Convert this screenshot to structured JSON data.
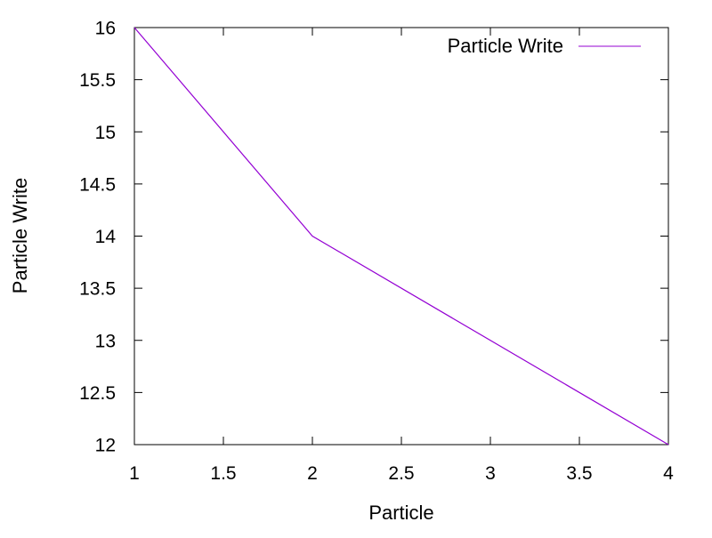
{
  "chart_data": {
    "type": "line",
    "title": "",
    "xlabel": "Particle",
    "ylabel": "Particle Write",
    "xlim": [
      1,
      4
    ],
    "ylim": [
      12,
      16
    ],
    "xticks": [
      1,
      1.5,
      2,
      2.5,
      3,
      3.5,
      4
    ],
    "xtick_labels": [
      "1",
      "1.5",
      "2",
      "2.5",
      "3",
      "3.5",
      "4"
    ],
    "yticks": [
      12,
      12.5,
      13,
      13.5,
      14,
      14.5,
      15,
      15.5,
      16
    ],
    "ytick_labels": [
      "12",
      "12.5",
      "13",
      "13.5",
      "14",
      "14.5",
      "15",
      "15.5",
      "16"
    ],
    "grid": false,
    "legend_position": "top-right",
    "series": [
      {
        "name": "Particle Write",
        "color": "#9400d3",
        "x": [
          1,
          2,
          4
        ],
        "y": [
          16,
          14,
          12
        ]
      }
    ]
  }
}
